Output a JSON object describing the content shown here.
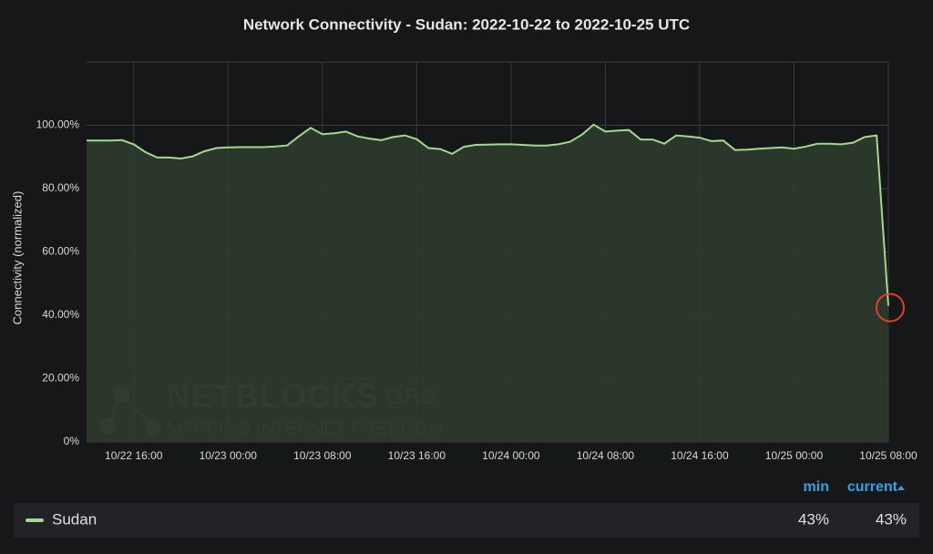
{
  "chart_data": {
    "type": "area",
    "title": "Network Connectivity - Sudan: 2022-10-22 to 2022-10-25 UTC",
    "y_label": "Connectivity (normalized)",
    "x": [
      "10/22 12:00",
      "10/22 13:00",
      "10/22 14:00",
      "10/22 15:00",
      "10/22 16:00",
      "10/22 17:00",
      "10/22 18:00",
      "10/22 19:00",
      "10/22 20:00",
      "10/22 21:00",
      "10/22 22:00",
      "10/22 23:00",
      "10/23 00:00",
      "10/23 01:00",
      "10/23 02:00",
      "10/23 03:00",
      "10/23 04:00",
      "10/23 05:00",
      "10/23 06:00",
      "10/23 07:00",
      "10/23 08:00",
      "10/23 09:00",
      "10/23 10:00",
      "10/23 11:00",
      "10/23 12:00",
      "10/23 13:00",
      "10/23 14:00",
      "10/23 15:00",
      "10/23 16:00",
      "10/23 17:00",
      "10/23 18:00",
      "10/23 19:00",
      "10/23 20:00",
      "10/23 21:00",
      "10/23 22:00",
      "10/23 23:00",
      "10/24 00:00",
      "10/24 01:00",
      "10/24 02:00",
      "10/24 03:00",
      "10/24 04:00",
      "10/24 05:00",
      "10/24 06:00",
      "10/24 07:00",
      "10/24 08:00",
      "10/24 09:00",
      "10/24 10:00",
      "10/24 11:00",
      "10/24 12:00",
      "10/24 13:00",
      "10/24 14:00",
      "10/24 15:00",
      "10/24 16:00",
      "10/24 17:00",
      "10/24 18:00",
      "10/24 19:00",
      "10/24 20:00",
      "10/24 21:00",
      "10/24 22:00",
      "10/24 23:00",
      "10/25 00:00",
      "10/25 01:00",
      "10/25 02:00",
      "10/25 03:00",
      "10/25 04:00",
      "10/25 05:00",
      "10/25 06:00",
      "10/25 07:00",
      "10/25 08:00"
    ],
    "series": [
      {
        "name": "Sudan",
        "color": "#a3d98f",
        "fill": "#2f3b2d",
        "values": [
          95.2,
          95.2,
          95.2,
          95.3,
          94,
          91.5,
          89.8,
          89.8,
          89.5,
          90.2,
          91.8,
          92.8,
          93,
          93.1,
          93.1,
          93.1,
          93.3,
          93.6,
          96.5,
          99.2,
          97.2,
          97.5,
          98,
          96.5,
          95.8,
          95.3,
          96.3,
          96.8,
          95.6,
          92.8,
          92.5,
          91,
          93.2,
          93.8,
          93.9,
          94,
          94,
          93.8,
          93.6,
          93.6,
          94,
          94.8,
          97,
          100.2,
          98,
          98.3,
          98.5,
          95.5,
          95.5,
          94.2,
          96.8,
          96.5,
          96.1,
          95,
          95.2,
          92.2,
          92.3,
          92.6,
          92.8,
          93,
          92.6,
          93.3,
          94.2,
          94.2,
          94,
          94.5,
          96.3,
          96.8,
          43
        ],
        "stats": [
          "43%",
          "43%"
        ]
      }
    ],
    "stat_headers": [
      "min",
      "current"
    ],
    "xlim": [
      "10/22 12:00",
      "10/25 08:00"
    ],
    "xticks": [
      "10/22 16:00",
      "10/23 00:00",
      "10/23 08:00",
      "10/23 16:00",
      "10/24 00:00",
      "10/24 08:00",
      "10/24 16:00",
      "10/25 00:00",
      "10/25 08:00"
    ],
    "ylim": [
      0,
      120
    ],
    "yticks": [
      {
        "value": 0,
        "label": "0%"
      },
      {
        "value": 20,
        "label": "20.00%"
      },
      {
        "value": 40,
        "label": "40.00%"
      },
      {
        "value": 60,
        "label": "60.00%"
      },
      {
        "value": 80,
        "label": "80.00%"
      },
      {
        "value": 100,
        "label": "100.00%"
      }
    ],
    "grid": true,
    "highlight_color": "#e0412b",
    "watermark": [
      "NETBLOCKS",
      ".ORG",
      "MAPPING INTERNET FREEDOM"
    ]
  }
}
